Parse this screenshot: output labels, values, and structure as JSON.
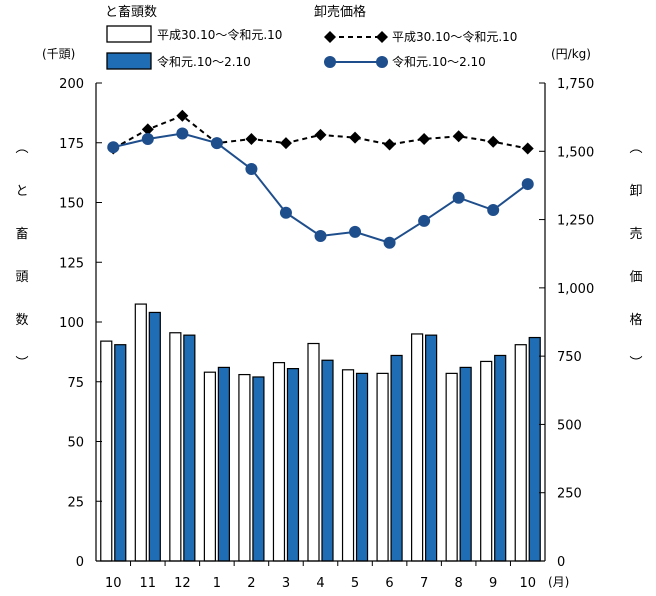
{
  "chart_data": {
    "type": "bar+line",
    "categories": [
      "10",
      "11",
      "12",
      "1",
      "2",
      "3",
      "4",
      "5",
      "6",
      "7",
      "8",
      "9",
      "10"
    ],
    "x_unit": "(月)",
    "legend": {
      "bar_group_title": "と畜頭数",
      "line_group_title": "卸売価格"
    },
    "left_axis": {
      "unit": "(千頭)",
      "label_chars": [
        "︵",
        "と",
        "畜",
        "頭",
        "数",
        "︶"
      ],
      "ylim": [
        0,
        200
      ],
      "ticks": [
        0,
        25,
        50,
        75,
        100,
        125,
        150,
        175,
        200
      ],
      "tick_labels": [
        "0",
        "25",
        "50",
        "75",
        "100",
        "125",
        "150",
        "175",
        "200"
      ]
    },
    "right_axis": {
      "unit": "(円/kg)",
      "label_chars": [
        "︵",
        "卸",
        "売",
        "価",
        "格",
        "︶"
      ],
      "ylim": [
        0,
        1750
      ],
      "ticks": [
        0,
        250,
        500,
        750,
        1000,
        1250,
        1500,
        1750
      ],
      "tick_labels": [
        "0",
        "250",
        "500",
        "750",
        "1,000",
        "1,250",
        "1,500",
        "1,750"
      ]
    },
    "bar_series": [
      {
        "name": "平成30.10～令和元.10",
        "color": "#ffffff",
        "stroke": "#000000",
        "values": [
          92,
          107.5,
          95.5,
          79,
          78,
          83,
          91,
          80,
          78.5,
          95,
          78.5,
          83.5,
          90.5
        ]
      },
      {
        "name": "令和元.10～2.10",
        "color": "#1f6db5",
        "stroke": "#000000",
        "values": [
          90.5,
          104,
          94.5,
          81,
          77,
          80.5,
          84,
          78.5,
          86,
          94.5,
          81,
          86,
          93.5
        ]
      }
    ],
    "line_series": [
      {
        "name": "平成30.10～令和元.10",
        "color": "#000000",
        "marker": "diamond",
        "dashed": true,
        "values": [
          1510,
          1580,
          1630,
          1530,
          1545,
          1530,
          1560,
          1550,
          1525,
          1545,
          1555,
          1535,
          1510
        ]
      },
      {
        "name": "令和元.10～2.10",
        "color": "#1f4e8c",
        "marker": "circle",
        "dashed": false,
        "values": [
          1515,
          1545,
          1565,
          1530,
          1435,
          1275,
          1190,
          1205,
          1165,
          1245,
          1330,
          1285,
          1380
        ]
      }
    ]
  }
}
